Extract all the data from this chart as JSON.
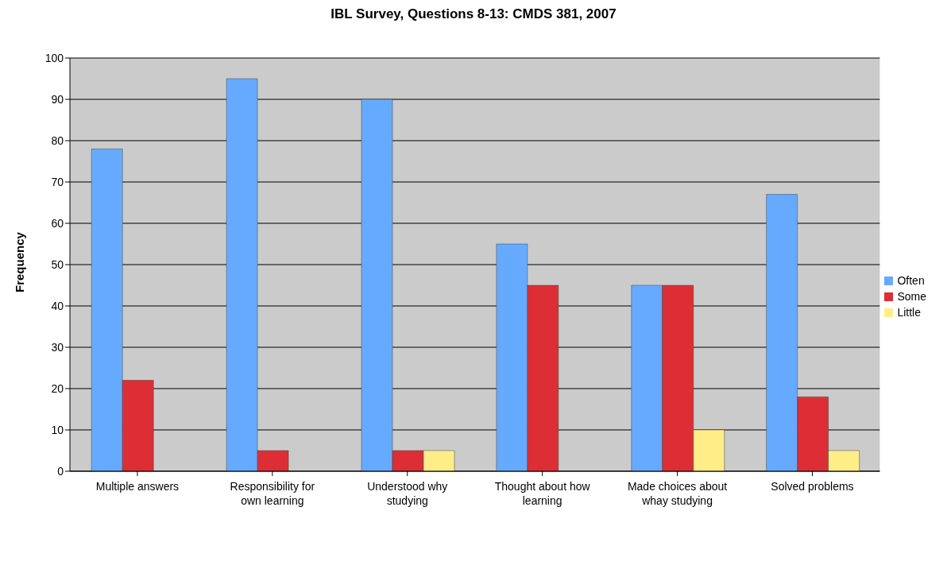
{
  "chart_data": {
    "type": "bar",
    "title": "IBL Survey, Questions 8-13:  CMDS 381, 2007",
    "ylabel": "Frequency",
    "categories": [
      "Multiple answers",
      "Responsibility for own learning",
      "Understood why studying",
      "Thought about how learning",
      "Made choices about whay studying",
      "Solved problems"
    ],
    "series": [
      {
        "name": "Often",
        "color": "#66aaff",
        "values": [
          78,
          95,
          90,
          55,
          45,
          67
        ]
      },
      {
        "name": "Some",
        "color": "#dd2e35",
        "values": [
          22,
          5,
          5,
          45,
          45,
          18
        ]
      },
      {
        "name": "Little",
        "color": "#ffee88",
        "values": [
          null,
          null,
          5,
          null,
          10,
          5
        ]
      }
    ],
    "ylim": [
      0,
      100
    ],
    "yticks": [
      0,
      10,
      20,
      30,
      40,
      50,
      60,
      70,
      80,
      90,
      100
    ],
    "grid": "y",
    "legend": "right"
  }
}
